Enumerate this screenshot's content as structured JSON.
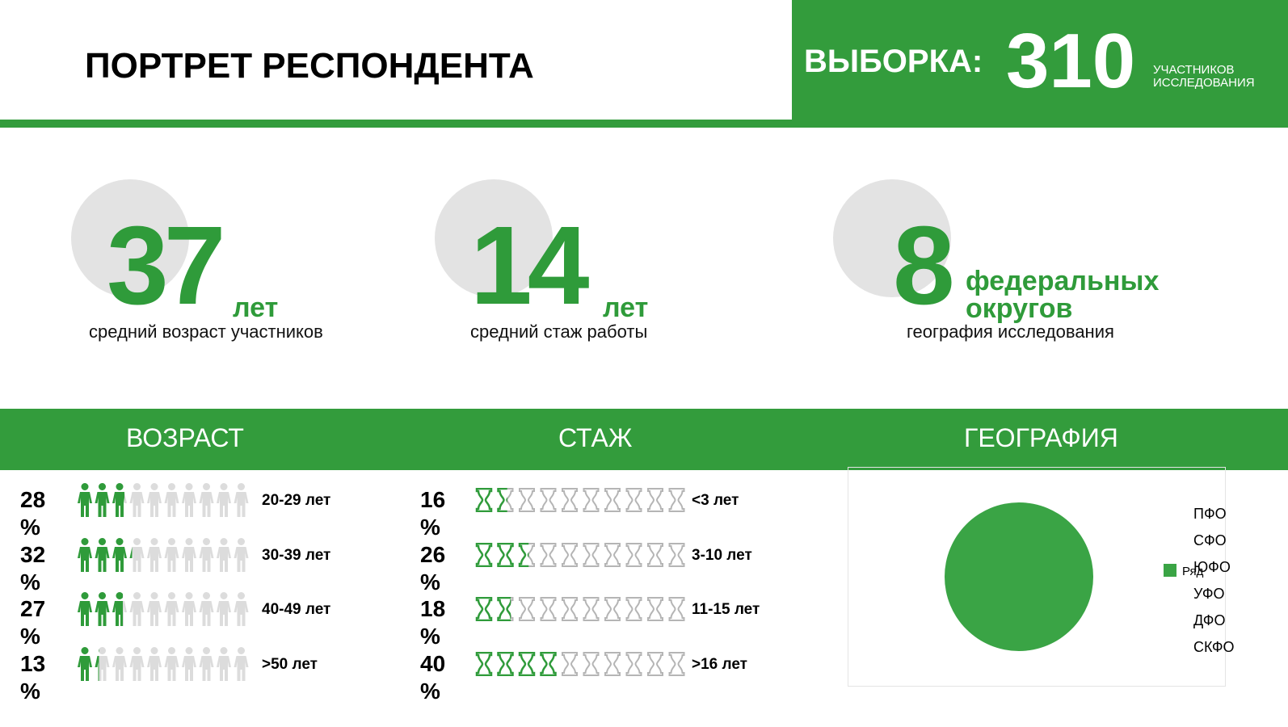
{
  "header": {
    "title": "ПОРТРЕТ РЕСПОНДЕНТА",
    "sample_label": "ВЫБОРКА:",
    "sample_value": "310",
    "sample_note": [
      "УЧАСТНИКОВ",
      "ИССЛЕДОВАНИЯ"
    ]
  },
  "stats": [
    {
      "value": "37",
      "unit": "лет",
      "caption": "средний возраст участников"
    },
    {
      "value": "14",
      "unit": "лет",
      "caption": "средний стаж работы"
    },
    {
      "value": "8",
      "unit": [
        "федеральных",
        "округов"
      ],
      "caption": "география исследования"
    }
  ],
  "sections": {
    "age": {
      "title": "ВОЗРАСТ",
      "rows": [
        {
          "value": 28,
          "label": "28 %",
          "range": "20-29 лет"
        },
        {
          "value": 32,
          "label": "32 %",
          "range": "30-39 лет"
        },
        {
          "value": 27,
          "label": "27 %",
          "range": "40-49 лет"
        },
        {
          "value": 13,
          "label": "13 %",
          "range": ">50 лет"
        }
      ]
    },
    "experience": {
      "title": "СТАЖ",
      "rows": [
        {
          "value": 16,
          "label": "16 %",
          "range": "<3 лет"
        },
        {
          "value": 26,
          "label": "26 %",
          "range": "3-10 лет"
        },
        {
          "value": 18,
          "label": "18 %",
          "range": "11-15 лет"
        },
        {
          "value": 40,
          "label": "40 %",
          "range": ">16 лет"
        }
      ]
    },
    "geography": {
      "title": "ГЕОГРАФИЯ",
      "chart": {
        "type": "pie",
        "categories": [
          "ПФО",
          "СФО",
          "ЮФО",
          "УФО",
          "ДФО",
          "СКФО"
        ],
        "series": [
          {
            "name": "Ряд",
            "color": "#3aa445"
          }
        ]
      }
    }
  }
}
